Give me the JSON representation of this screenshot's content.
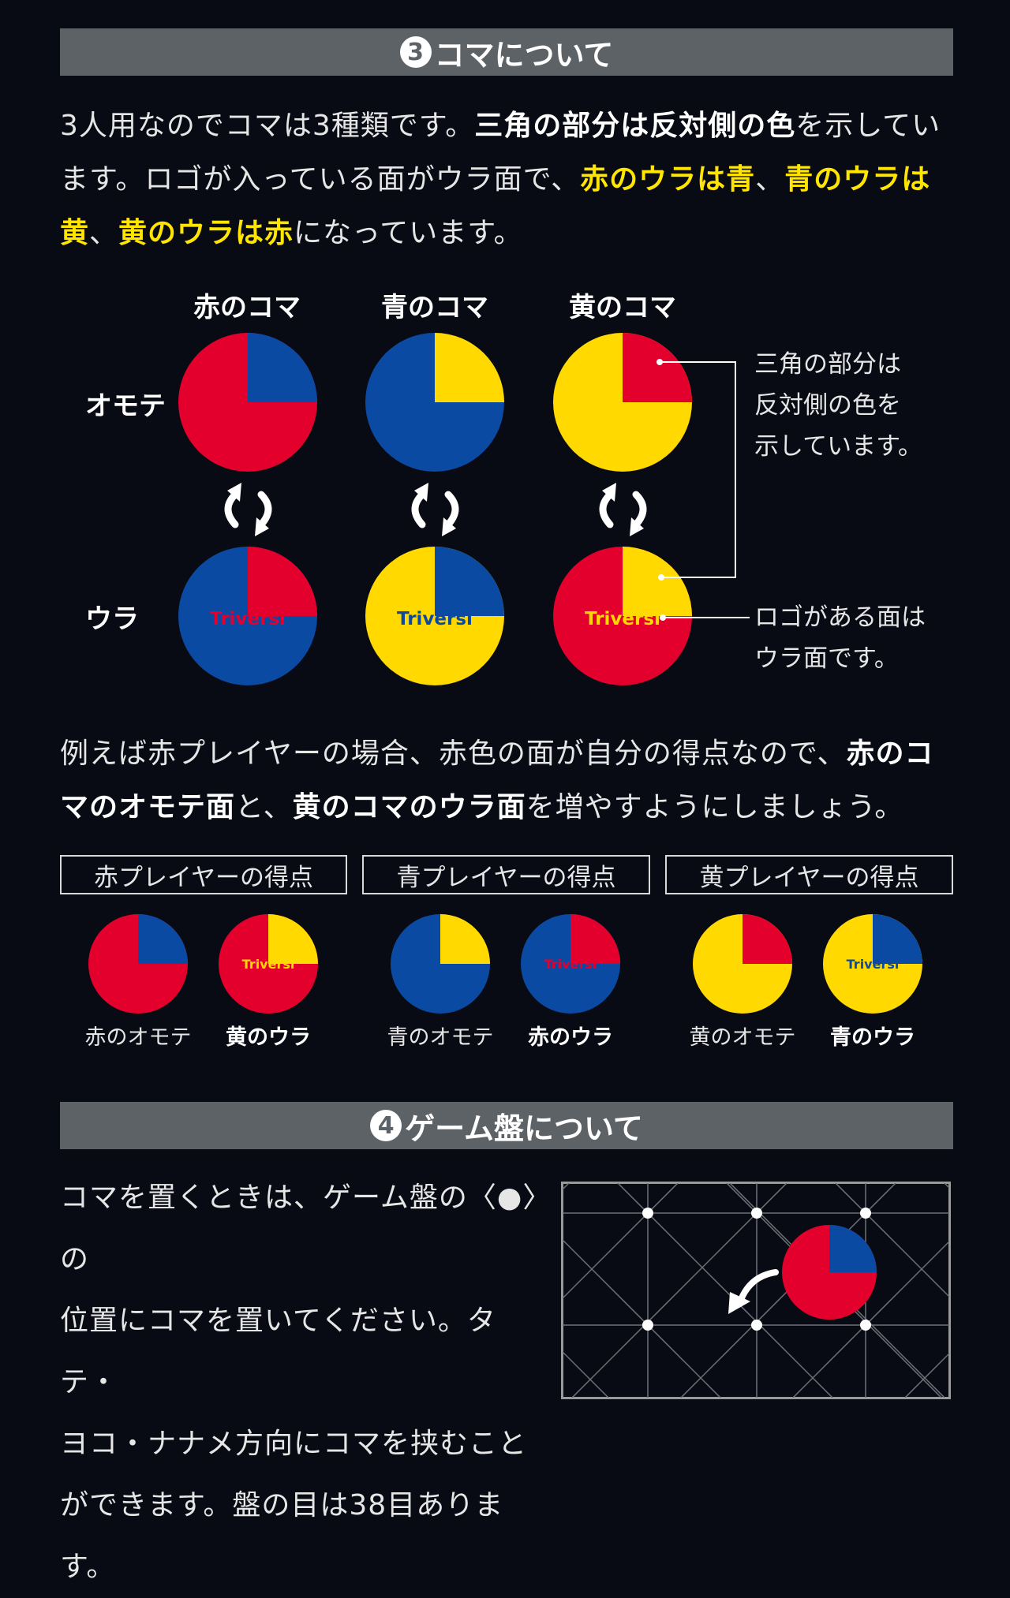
{
  "section3": {
    "num": "3",
    "title": "コマについて",
    "intro": [
      {
        "t": "3人用なのでコマは3種類です。"
      },
      {
        "t": "三角の部分は反対側の色",
        "s": "b"
      },
      {
        "t": "を示しています。ロゴが入っている面がウラ面で、"
      },
      {
        "t": "赤のウラは青",
        "s": "y"
      },
      {
        "t": "、"
      },
      {
        "t": "青のウラは黄",
        "s": "y"
      },
      {
        "t": "、"
      },
      {
        "t": "黄のウラは赤",
        "s": "y"
      },
      {
        "t": "になっています。"
      }
    ],
    "col_labels": [
      "赤のコマ",
      "青のコマ",
      "黄のコマ"
    ],
    "row_front": "オモテ",
    "row_back": "ウラ",
    "logo": "Triversi",
    "note1": [
      "三角の部分は",
      "反対側の色を",
      "示しています。"
    ],
    "note2": [
      "ロゴがある面は",
      "ウラ面です。"
    ],
    "example": [
      {
        "t": "例えば赤プレイヤーの場合、赤色の面が自分の得点なので、"
      },
      {
        "t": "赤のコマのオモテ面",
        "s": "b"
      },
      {
        "t": "と、"
      },
      {
        "t": "黄のコマのウラ面",
        "s": "b"
      },
      {
        "t": "を増やすようにしましょう。"
      }
    ],
    "players": [
      {
        "title": "赤プレイヤーの得点",
        "cap1": "赤のオモテ",
        "cap2": "黄のウラ"
      },
      {
        "title": "青プレイヤーの得点",
        "cap1": "青のオモテ",
        "cap2": "赤のウラ"
      },
      {
        "title": "黄プレイヤーの得点",
        "cap1": "黄のオモテ",
        "cap2": "青のウラ"
      }
    ]
  },
  "section4": {
    "num": "4",
    "title": "ゲーム盤について",
    "text_lines": [
      "コマを置くときは、ゲーム盤の〈●〉の",
      "位置にコマを置いてください。タテ・",
      "ヨコ・ナナメ方向にコマを挟むこと",
      "ができます。盤の目は38目あります。"
    ]
  },
  "colors": {
    "red": "#e3002d",
    "blue": "#0b4aa2",
    "yellow": "#ffd900",
    "header": "#5c6266",
    "bg": "#080b14"
  }
}
